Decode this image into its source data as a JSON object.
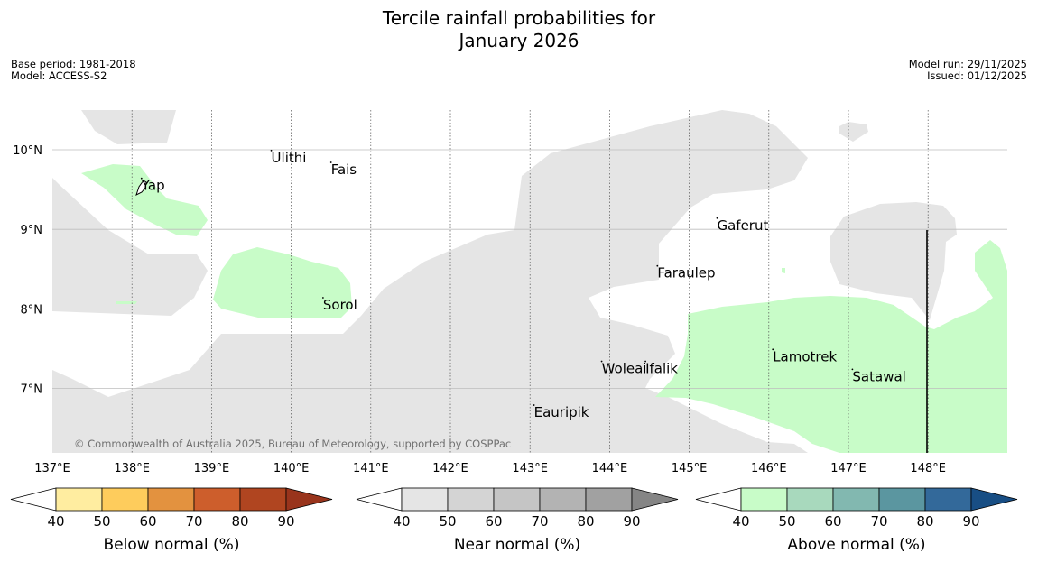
{
  "title": {
    "line1": "Tercile rainfall probabilities for",
    "line2": "January 2026"
  },
  "meta": {
    "base_period": "Base period: 1981-2018",
    "model": "Model: ACCESS-S2",
    "model_run": "Model run: 29/11/2025",
    "issued": "Issued: 01/12/2025"
  },
  "map": {
    "lon_labels": [
      "137°E",
      "138°E",
      "139°E",
      "140°E",
      "141°E",
      "142°E",
      "143°E",
      "144°E",
      "145°E",
      "146°E",
      "147°E",
      "148°E"
    ],
    "lon_values": [
      137,
      138,
      139,
      140,
      141,
      142,
      143,
      144,
      145,
      146,
      147,
      148
    ],
    "lat_labels": [
      "10°N",
      "9°N",
      "8°N",
      "7°N"
    ],
    "lat_values": [
      10,
      9,
      8,
      7
    ],
    "lon_range": [
      137,
      149
    ],
    "lat_range": [
      6.2,
      10.5
    ],
    "copyright": "© Commonwealth of Australia 2025, Bureau of Meteorology, supported by COSPPac",
    "places": [
      {
        "name": "Ulithi",
        "lon": 139.75,
        "lat": 9.9
      },
      {
        "name": "Fais",
        "lon": 140.5,
        "lat": 9.75
      },
      {
        "name": "Yap",
        "lon": 138.12,
        "lat": 9.55
      },
      {
        "name": "Gaferut",
        "lon": 145.35,
        "lat": 9.05
      },
      {
        "name": "Faraulep",
        "lon": 144.6,
        "lat": 8.45
      },
      {
        "name": "Sorol",
        "lon": 140.4,
        "lat": 8.05
      },
      {
        "name": "Lamotrek",
        "lon": 146.05,
        "lat": 7.4
      },
      {
        "name": "Woleai",
        "lon": 143.9,
        "lat": 7.25
      },
      {
        "name": "Ifalik",
        "lon": 144.45,
        "lat": 7.25
      },
      {
        "name": "Satawal",
        "lon": 147.05,
        "lat": 7.15
      },
      {
        "name": "Eauripik",
        "lon": 143.05,
        "lat": 6.7
      }
    ],
    "colors": {
      "near_normal": "#e5e5e5",
      "above_normal_40": "#c8fcc8",
      "grid": "#bdbdbd",
      "frame_line": "#000000"
    }
  },
  "colorbars": [
    {
      "label": "Below normal (%)",
      "ticks": [
        "40",
        "50",
        "60",
        "70",
        "80",
        "90"
      ],
      "colors": [
        "#ffeda0",
        "#fecc5c",
        "#e3923f",
        "#cd5e2c",
        "#b04520",
        "#99341c"
      ]
    },
    {
      "label": "Near normal (%)",
      "ticks": [
        "40",
        "50",
        "60",
        "70",
        "80",
        "90"
      ],
      "colors": [
        "#e5e5e5",
        "#d4d4d4",
        "#c5c5c5",
        "#b3b3b3",
        "#a1a1a1",
        "#858585"
      ]
    },
    {
      "label": "Above normal (%)",
      "ticks": [
        "40",
        "50",
        "60",
        "70",
        "80",
        "90"
      ],
      "colors": [
        "#c8fcc8",
        "#a8d9bd",
        "#82b8b0",
        "#5b96a0",
        "#33699a",
        "#184e84"
      ]
    }
  ]
}
